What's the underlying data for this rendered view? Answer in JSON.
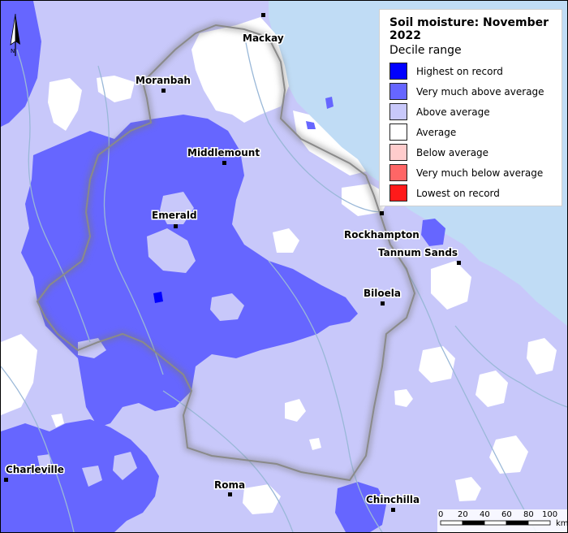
{
  "legend": {
    "title": "Soil moisture: November 2022",
    "subtitle": "Decile range",
    "items": [
      {
        "label": "Highest on record",
        "color": "#0000ff"
      },
      {
        "label": "Very much above average",
        "color": "#6666ff"
      },
      {
        "label": "Above average",
        "color": "#c8c8fa"
      },
      {
        "label": "Average",
        "color": "#ffffff"
      },
      {
        "label": "Below average",
        "color": "#ffcccc"
      },
      {
        "label": "Very much below average",
        "color": "#ff6666"
      },
      {
        "label": "Lowest on record",
        "color": "#ff1a1a"
      }
    ]
  },
  "places": [
    {
      "name": "Mackay"
    },
    {
      "name": "Moranbah"
    },
    {
      "name": "Middlemount"
    },
    {
      "name": "Emerald"
    },
    {
      "name": "Rockhampton"
    },
    {
      "name": "Tannum Sands"
    },
    {
      "name": "Biloela"
    },
    {
      "name": "Charleville"
    },
    {
      "name": "Roma"
    },
    {
      "name": "Chinchilla"
    }
  ],
  "scale_bar": {
    "ticks": [
      "0",
      "20",
      "40",
      "60",
      "80",
      "100"
    ],
    "unit": "km"
  },
  "north_arrow": {
    "label": "N"
  },
  "colors": {
    "ocean": "#c0dcf5",
    "above_average": "#c8c8fa",
    "very_much_above": "#6666ff",
    "highest": "#0000ff",
    "average": "#ffffff",
    "rivers": "#9ab8d8",
    "catchment_boundary": "#8a8a8a"
  }
}
